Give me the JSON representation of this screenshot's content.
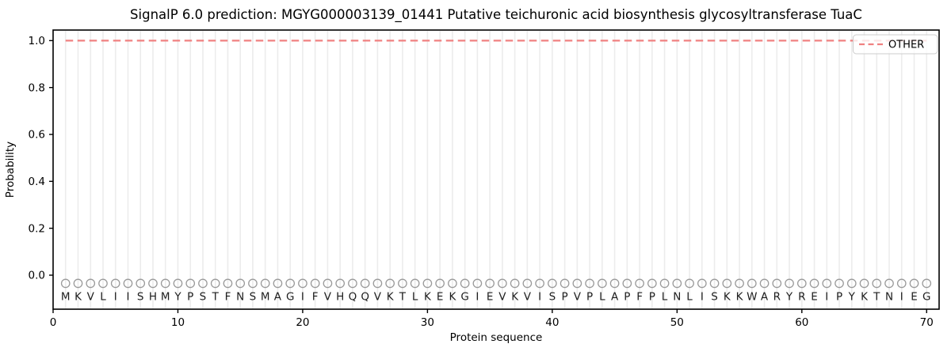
{
  "chart_data": {
    "type": "line",
    "title": "SignalP 6.0 prediction: MGYG000003139_01441 Putative teichuronic acid biosynthesis glycosyltransferase TuaC",
    "xlabel": "Protein sequence",
    "ylabel": "Probability",
    "xlim": [
      0,
      71
    ],
    "ylim": [
      -0.145,
      1.045
    ],
    "x_ticks": [
      0,
      10,
      20,
      30,
      40,
      50,
      60,
      70
    ],
    "y_ticks": [
      "0.0",
      "0.2",
      "0.4",
      "0.6",
      "0.8",
      "1.0"
    ],
    "grid": "vertical light line at every residue position, no horizontal gridlines",
    "legend": {
      "position": "upper right",
      "entries": [
        "OTHER"
      ]
    },
    "series": [
      {
        "name": "OTHER",
        "color": "#f08080",
        "line_style": "dashed",
        "x": [
          1,
          2,
          3,
          4,
          5,
          6,
          7,
          8,
          9,
          10,
          11,
          12,
          13,
          14,
          15,
          16,
          17,
          18,
          19,
          20,
          21,
          22,
          23,
          24,
          25,
          26,
          27,
          28,
          29,
          30,
          31,
          32,
          33,
          34,
          35,
          36,
          37,
          38,
          39,
          40,
          41,
          42,
          43,
          44,
          45,
          46,
          47,
          48,
          49,
          50,
          51,
          52,
          53,
          54,
          55,
          56,
          57,
          58,
          59,
          60,
          61,
          62,
          63,
          64,
          65,
          66,
          67,
          68,
          69,
          70
        ],
        "values": [
          1.0,
          1.0,
          1.0,
          1.0,
          1.0,
          1.0,
          1.0,
          1.0,
          1.0,
          1.0,
          1.0,
          1.0,
          1.0,
          1.0,
          1.0,
          1.0,
          1.0,
          1.0,
          1.0,
          1.0,
          1.0,
          1.0,
          1.0,
          1.0,
          1.0,
          1.0,
          1.0,
          1.0,
          1.0,
          1.0,
          1.0,
          1.0,
          1.0,
          1.0,
          1.0,
          1.0,
          1.0,
          1.0,
          1.0,
          1.0,
          1.0,
          1.0,
          1.0,
          1.0,
          1.0,
          1.0,
          1.0,
          1.0,
          1.0,
          1.0,
          1.0,
          1.0,
          1.0,
          1.0,
          1.0,
          1.0,
          1.0,
          1.0,
          1.0,
          1.0,
          1.0,
          1.0,
          1.0,
          1.0,
          1.0,
          1.0,
          1.0,
          1.0,
          1.0,
          1.0
        ]
      }
    ],
    "sequence": {
      "residues": "MKVLIISHMYPSTFNSMAGIFVHQQVKTLKEKGIEVKVISPVPLAPFPLNLISKKWARYREIPYKTNIEG",
      "first_position": 1,
      "marker": "open circle above each residue letter",
      "marker_color": "#9a9a9a"
    },
    "colors": {
      "background": "#ffffff",
      "grid": "#ececec",
      "spine": "#000000",
      "letter": "#1c1c1c"
    }
  }
}
